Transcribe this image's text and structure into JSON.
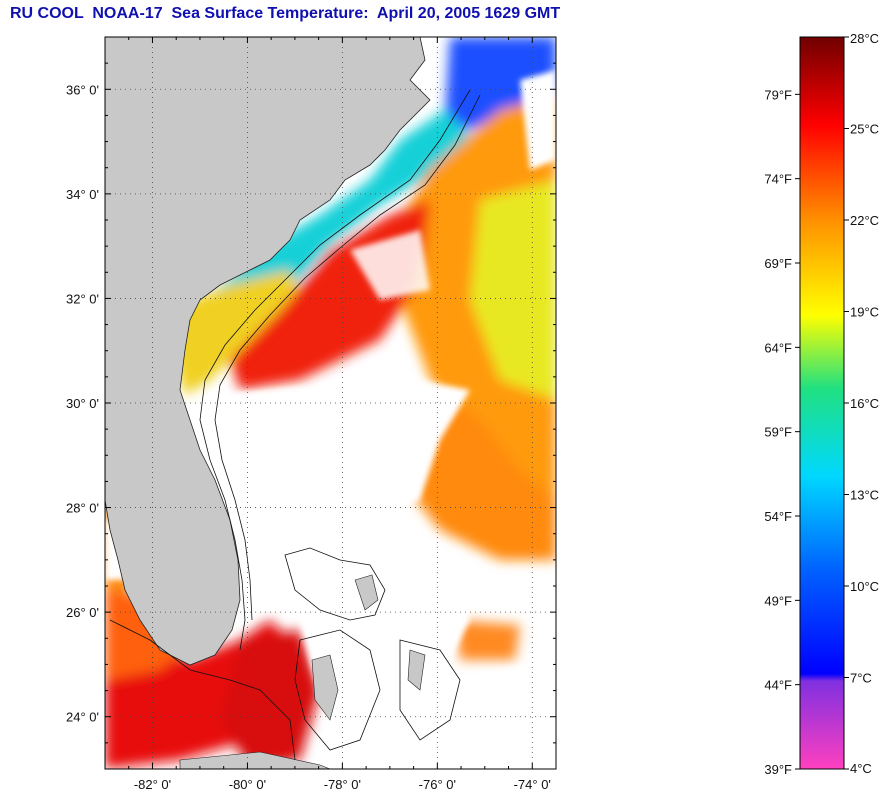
{
  "title": "RU COOL  NOAA-17  Sea Surface Temperature:  April 20, 2005 1629 GMT",
  "map": {
    "lat_labels": [
      "36° 0'",
      "34° 0'",
      "32° 0'",
      "30° 0'",
      "28° 0'",
      "26° 0'",
      "24° 0'"
    ],
    "lat_values": [
      36,
      34,
      32,
      30,
      28,
      26,
      24
    ],
    "lon_labels": [
      "-82° 0'",
      "-80° 0'",
      "-78° 0'",
      "-76° 0'",
      "-74° 0'"
    ],
    "lon_values": [
      -82,
      -80,
      -78,
      -76,
      -74
    ],
    "lat_range": [
      23.0,
      37.0
    ],
    "lon_range": [
      -83.0,
      -73.5
    ],
    "grid": "dotted",
    "colors": {
      "land": "#c8c8c8",
      "cloud": "#ffffff",
      "cold": "#1a4fff",
      "cool": "#18d0d8",
      "mild": "#e8e820",
      "warm": "#ff8010",
      "hot": "#e81010"
    }
  },
  "colorbar": {
    "celsius_labels": [
      "28°C",
      "25°C",
      "22°C",
      "19°C",
      "16°C",
      "13°C",
      "10°C",
      "7°C",
      "4°C"
    ],
    "fahrenheit_labels": [
      "79°F",
      "74°F",
      "69°F",
      "64°F",
      "59°F",
      "54°F",
      "49°F",
      "44°F",
      "39°F"
    ],
    "range_c": [
      4,
      28
    ],
    "range_f": [
      39,
      82.4
    ]
  }
}
